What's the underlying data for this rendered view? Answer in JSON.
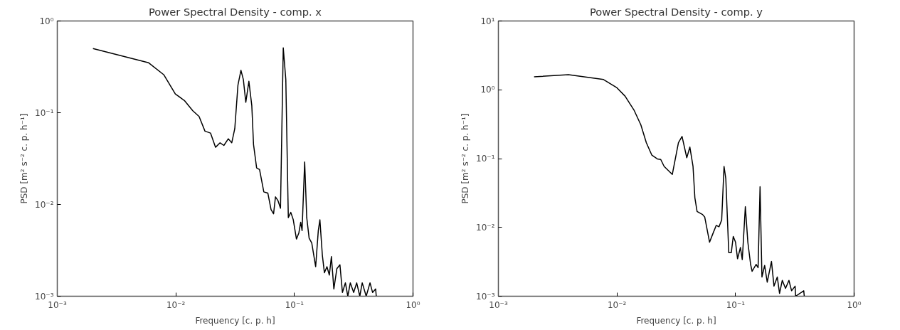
{
  "chart_data": [
    {
      "type": "line",
      "title": "Power Spectral Density - comp. x",
      "xlabel": "Frequency [c. p. h]",
      "ylabel": "PSD [m² s⁻² c. p. h⁻¹]",
      "log": "xy",
      "xlim": [
        0.001,
        1
      ],
      "ylim": [
        0.001,
        1
      ],
      "xticks": [
        {
          "value": 0.001,
          "label": "10⁻³"
        },
        {
          "value": 0.01,
          "label": "10⁻²"
        },
        {
          "value": 0.1,
          "label": "10⁻¹"
        },
        {
          "value": 1,
          "label": "10⁰"
        }
      ],
      "yticks": [
        {
          "value": 0.001,
          "label": "10⁻³"
        },
        {
          "value": 0.01,
          "label": "10⁻²"
        },
        {
          "value": 0.1,
          "label": "10⁻¹"
        },
        {
          "value": 1,
          "label": "10⁰"
        }
      ],
      "series": [
        {
          "color": "#000000",
          "x": [
            0.002,
            0.0059,
            0.0079,
            0.0099,
            0.0118,
            0.0139,
            0.0157,
            0.0176,
            0.0196,
            0.0216,
            0.0236,
            0.0254,
            0.0277,
            0.0296,
            0.0314,
            0.0334,
            0.0354,
            0.0371,
            0.0389,
            0.0413,
            0.0437,
            0.0452,
            0.048,
            0.0508,
            0.0552,
            0.0597,
            0.0635,
            0.0667,
            0.0692,
            0.0727,
            0.0763,
            0.0805,
            0.0846,
            0.0888,
            0.0932,
            0.0978,
            0.104,
            0.109,
            0.113,
            0.116,
            0.122,
            0.127,
            0.133,
            0.14,
            0.151,
            0.159,
            0.164,
            0.172,
            0.179,
            0.188,
            0.197,
            0.205,
            0.215,
            0.228,
            0.242,
            0.254,
            0.269,
            0.282,
            0.296,
            0.316,
            0.335,
            0.356,
            0.373,
            0.403,
            0.434,
            0.456,
            0.484,
            0.49
          ],
          "values": [
            0.5,
            0.35,
            0.26,
            0.16,
            0.136,
            0.105,
            0.091,
            0.063,
            0.06,
            0.042,
            0.047,
            0.044,
            0.052,
            0.047,
            0.067,
            0.2,
            0.29,
            0.23,
            0.13,
            0.22,
            0.12,
            0.045,
            0.025,
            0.024,
            0.0137,
            0.0133,
            0.0088,
            0.0079,
            0.0121,
            0.011,
            0.0091,
            0.51,
            0.23,
            0.0072,
            0.0082,
            0.0068,
            0.0042,
            0.0049,
            0.0064,
            0.0052,
            0.029,
            0.0072,
            0.0043,
            0.0038,
            0.0021,
            0.0052,
            0.0068,
            0.0028,
            0.0018,
            0.0021,
            0.0017,
            0.0027,
            0.0012,
            0.002,
            0.0022,
            0.0011,
            0.0014,
            0.001,
            0.0014,
            0.0011,
            0.0014,
            0.001,
            0.0014,
            0.001,
            0.0014,
            0.0011,
            0.0012,
            0.001
          ]
        }
      ]
    },
    {
      "type": "line",
      "title": "Power Spectral Density - comp. y",
      "xlabel": "Frequency [c. p. h]",
      "ylabel": "PSD [m² s⁻² c. p. h⁻¹]",
      "log": "xy",
      "xlim": [
        0.001,
        1
      ],
      "ylim": [
        0.001,
        10
      ],
      "xticks": [
        {
          "value": 0.001,
          "label": "10⁻³"
        },
        {
          "value": 0.01,
          "label": "10⁻²"
        },
        {
          "value": 0.1,
          "label": "10⁻¹"
        },
        {
          "value": 1,
          "label": "10⁰"
        }
      ],
      "yticks": [
        {
          "value": 0.001,
          "label": "10⁻³"
        },
        {
          "value": 0.01,
          "label": "10⁻²"
        },
        {
          "value": 0.1,
          "label": "10⁻¹"
        },
        {
          "value": 1,
          "label": "10⁰"
        },
        {
          "value": 10,
          "label": "10¹"
        }
      ],
      "series": [
        {
          "color": "#000000",
          "x": [
            0.002,
            0.0039,
            0.0077,
            0.01,
            0.0117,
            0.0139,
            0.0159,
            0.0177,
            0.0197,
            0.0219,
            0.0234,
            0.025,
            0.0293,
            0.033,
            0.0354,
            0.0388,
            0.0412,
            0.0438,
            0.0454,
            0.0474,
            0.0527,
            0.055,
            0.0604,
            0.0644,
            0.0687,
            0.0725,
            0.0764,
            0.08,
            0.0828,
            0.0877,
            0.0921,
            0.0957,
            0.1,
            0.104,
            0.11,
            0.114,
            0.121,
            0.127,
            0.134,
            0.138,
            0.149,
            0.155,
            0.161,
            0.167,
            0.176,
            0.185,
            0.201,
            0.211,
            0.225,
            0.235,
            0.248,
            0.264,
            0.282,
            0.297,
            0.318,
            0.321,
            0.376,
            0.38
          ],
          "values": [
            1.54,
            1.66,
            1.41,
            1.07,
            0.81,
            0.51,
            0.31,
            0.17,
            0.112,
            0.099,
            0.097,
            0.077,
            0.059,
            0.17,
            0.21,
            0.103,
            0.147,
            0.077,
            0.027,
            0.017,
            0.0154,
            0.0141,
            0.0061,
            0.0081,
            0.0107,
            0.0102,
            0.0128,
            0.077,
            0.051,
            0.0043,
            0.0043,
            0.0074,
            0.0061,
            0.0035,
            0.0051,
            0.0034,
            0.02,
            0.0061,
            0.0029,
            0.0023,
            0.0029,
            0.0026,
            0.039,
            0.0019,
            0.0028,
            0.0016,
            0.0032,
            0.0014,
            0.0019,
            0.0011,
            0.0017,
            0.0013,
            0.0017,
            0.0012,
            0.0014,
            0.001,
            0.0012,
            0.001
          ]
        }
      ]
    }
  ]
}
